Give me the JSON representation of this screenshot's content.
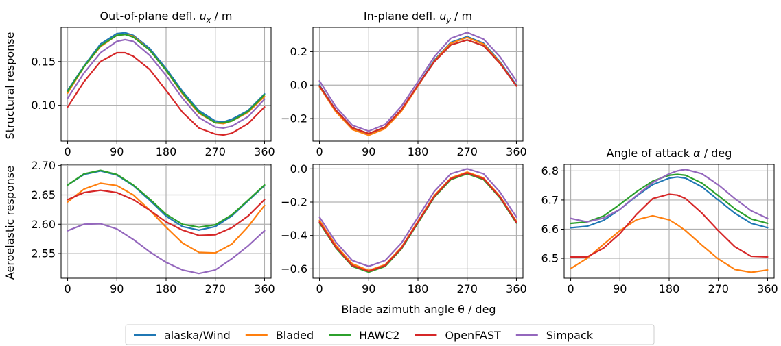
{
  "figure": {
    "row_labels": [
      "Structural response",
      "Aeroelastic response"
    ],
    "xlabel_common": "Blade azimuth angle θ / deg",
    "legend": [
      {
        "name": "alaska/Wind",
        "color": "#1f77b4"
      },
      {
        "name": "Bladed",
        "color": "#ff7f0e"
      },
      {
        "name": "HAWC2",
        "color": "#2ca02c"
      },
      {
        "name": "OpenFAST",
        "color": "#d62728"
      },
      {
        "name": "Simpack",
        "color": "#9467bd"
      }
    ]
  },
  "chart_data": [
    {
      "id": "ux",
      "type": "line",
      "title": "Out-of-plane defl. u_x / m",
      "title_parts": [
        "Out-of-plane defl. ",
        "u",
        "x",
        " / m"
      ],
      "xlabel": "",
      "ylabel": "Structural response",
      "xlim": [
        -12,
        372
      ],
      "ylim": [
        0.059,
        0.189
      ],
      "xticks": [
        0,
        90,
        180,
        270,
        360
      ],
      "yticks": [
        0.1,
        0.15
      ],
      "ytick_labels": [
        "0.10",
        "0.15"
      ],
      "grid": true,
      "x": [
        0,
        30,
        60,
        90,
        105,
        120,
        150,
        180,
        210,
        240,
        270,
        285,
        300,
        330,
        360
      ],
      "series": [
        {
          "name": "alaska/Wind",
          "color": "#1f77b4",
          "values": [
            0.117,
            0.145,
            0.17,
            0.182,
            0.183,
            0.18,
            0.165,
            0.142,
            0.116,
            0.094,
            0.082,
            0.081,
            0.084,
            0.094,
            0.113
          ]
        },
        {
          "name": "Bladed",
          "color": "#ff7f0e",
          "values": [
            0.114,
            0.144,
            0.167,
            0.18,
            0.181,
            0.179,
            0.163,
            0.14,
            0.113,
            0.091,
            0.08,
            0.079,
            0.082,
            0.092,
            0.11
          ]
        },
        {
          "name": "HAWC2",
          "color": "#2ca02c",
          "values": [
            0.116,
            0.144,
            0.168,
            0.18,
            0.181,
            0.178,
            0.163,
            0.14,
            0.114,
            0.092,
            0.08,
            0.08,
            0.082,
            0.093,
            0.112
          ]
        },
        {
          "name": "OpenFAST",
          "color": "#d62728",
          "values": [
            0.098,
            0.127,
            0.15,
            0.16,
            0.16,
            0.156,
            0.141,
            0.117,
            0.092,
            0.074,
            0.067,
            0.066,
            0.068,
            0.079,
            0.098
          ]
        },
        {
          "name": "Simpack",
          "color": "#9467bd",
          "values": [
            0.108,
            0.137,
            0.16,
            0.173,
            0.175,
            0.173,
            0.157,
            0.134,
            0.108,
            0.086,
            0.075,
            0.074,
            0.076,
            0.087,
            0.107
          ]
        }
      ]
    },
    {
      "id": "uy",
      "type": "line",
      "title": "In-plane defl. u_y / m",
      "title_parts": [
        "In-plane defl. ",
        "u",
        "y",
        " / m"
      ],
      "xlabel": "",
      "ylabel": "",
      "xlim": [
        -12,
        372
      ],
      "ylim": [
        -0.335,
        0.345
      ],
      "xticks": [
        0,
        90,
        180,
        270,
        360
      ],
      "yticks": [
        -0.2,
        0.0,
        0.2
      ],
      "ytick_labels": [
        "−0.2",
        "0.0",
        "0.2"
      ],
      "grid": true,
      "x": [
        0,
        30,
        60,
        90,
        120,
        150,
        180,
        210,
        240,
        270,
        300,
        330,
        360
      ],
      "series": [
        {
          "name": "alaska/Wind",
          "color": "#1f77b4",
          "values": [
            0.0,
            -0.15,
            -0.26,
            -0.295,
            -0.255,
            -0.15,
            0.0,
            0.15,
            0.255,
            0.29,
            0.25,
            0.14,
            0.0
          ]
        },
        {
          "name": "Bladed",
          "color": "#ff7f0e",
          "values": [
            -0.01,
            -0.16,
            -0.265,
            -0.3,
            -0.26,
            -0.155,
            -0.005,
            0.145,
            0.25,
            0.285,
            0.245,
            0.135,
            -0.005
          ]
        },
        {
          "name": "HAWC2",
          "color": "#2ca02c",
          "values": [
            -0.005,
            -0.15,
            -0.255,
            -0.29,
            -0.25,
            -0.145,
            0.0,
            0.14,
            0.24,
            0.27,
            0.235,
            0.13,
            -0.005
          ]
        },
        {
          "name": "OpenFAST",
          "color": "#d62728",
          "values": [
            -0.005,
            -0.15,
            -0.255,
            -0.29,
            -0.25,
            -0.145,
            0.0,
            0.14,
            0.24,
            0.27,
            0.235,
            0.13,
            -0.005
          ]
        },
        {
          "name": "Simpack",
          "color": "#9467bd",
          "values": [
            0.025,
            -0.13,
            -0.24,
            -0.275,
            -0.235,
            -0.125,
            0.02,
            0.17,
            0.28,
            0.315,
            0.275,
            0.17,
            0.025
          ]
        }
      ]
    },
    {
      "id": "aero-ux",
      "type": "line",
      "title": "",
      "xlabel": "",
      "ylabel": "Aeroelastic response",
      "xlim": [
        -12,
        372
      ],
      "ylim": [
        2.508,
        2.702
      ],
      "xticks": [
        0,
        90,
        180,
        270,
        360
      ],
      "yticks": [
        2.55,
        2.6,
        2.65,
        2.7
      ],
      "ytick_labels": [
        "2.55",
        "2.60",
        "2.65",
        "2.70"
      ],
      "grid": true,
      "x": [
        0,
        30,
        60,
        90,
        120,
        150,
        180,
        210,
        240,
        270,
        300,
        330,
        360
      ],
      "series": [
        {
          "name": "alaska/Wind",
          "color": "#1f77b4",
          "values": [
            2.667,
            2.685,
            2.691,
            2.684,
            2.666,
            2.641,
            2.614,
            2.596,
            2.59,
            2.596,
            2.614,
            2.64,
            2.666
          ]
        },
        {
          "name": "Bladed",
          "color": "#ff7f0e",
          "values": [
            2.638,
            2.66,
            2.67,
            2.666,
            2.65,
            2.624,
            2.595,
            2.568,
            2.552,
            2.551,
            2.566,
            2.596,
            2.632
          ]
        },
        {
          "name": "HAWC2",
          "color": "#2ca02c",
          "values": [
            2.667,
            2.686,
            2.692,
            2.685,
            2.667,
            2.643,
            2.617,
            2.6,
            2.595,
            2.599,
            2.616,
            2.641,
            2.667
          ]
        },
        {
          "name": "OpenFAST",
          "color": "#d62728",
          "values": [
            2.642,
            2.654,
            2.658,
            2.654,
            2.642,
            2.624,
            2.604,
            2.59,
            2.581,
            2.582,
            2.594,
            2.614,
            2.642
          ]
        },
        {
          "name": "Simpack",
          "color": "#9467bd",
          "values": [
            2.589,
            2.6,
            2.601,
            2.592,
            2.574,
            2.553,
            2.535,
            2.522,
            2.516,
            2.522,
            2.541,
            2.563,
            2.589
          ]
        }
      ]
    },
    {
      "id": "aero-uy",
      "type": "line",
      "title": "",
      "xlabel": "Blade azimuth angle θ / deg",
      "ylabel": "",
      "xlim": [
        -12,
        372
      ],
      "ylim": [
        -0.656,
        0.026
      ],
      "xticks": [
        0,
        90,
        180,
        270,
        360
      ],
      "yticks": [
        -0.6,
        -0.4,
        -0.2,
        0.0
      ],
      "ytick_labels": [
        "−0.6",
        "−0.4",
        "−0.2",
        "0.0"
      ],
      "grid": true,
      "x": [
        0,
        30,
        60,
        90,
        120,
        150,
        180,
        210,
        240,
        270,
        300,
        330,
        360
      ],
      "series": [
        {
          "name": "alaska/Wind",
          "color": "#1f77b4",
          "values": [
            -0.32,
            -0.47,
            -0.58,
            -0.615,
            -0.58,
            -0.475,
            -0.32,
            -0.165,
            -0.06,
            -0.025,
            -0.06,
            -0.17,
            -0.32
          ]
        },
        {
          "name": "Bladed",
          "color": "#ff7f0e",
          "values": [
            -0.31,
            -0.46,
            -0.57,
            -0.61,
            -0.575,
            -0.47,
            -0.315,
            -0.16,
            -0.055,
            -0.02,
            -0.055,
            -0.165,
            -0.315
          ]
        },
        {
          "name": "HAWC2",
          "color": "#2ca02c",
          "values": [
            -0.325,
            -0.475,
            -0.585,
            -0.62,
            -0.585,
            -0.48,
            -0.325,
            -0.17,
            -0.065,
            -0.03,
            -0.065,
            -0.175,
            -0.325
          ]
        },
        {
          "name": "OpenFAST",
          "color": "#d62728",
          "values": [
            -0.32,
            -0.47,
            -0.58,
            -0.615,
            -0.58,
            -0.475,
            -0.32,
            -0.165,
            -0.06,
            -0.025,
            -0.06,
            -0.17,
            -0.32
          ]
        },
        {
          "name": "Simpack",
          "color": "#9467bd",
          "values": [
            -0.29,
            -0.44,
            -0.55,
            -0.585,
            -0.55,
            -0.445,
            -0.29,
            -0.135,
            -0.03,
            0.0,
            -0.03,
            -0.14,
            -0.29
          ]
        }
      ]
    },
    {
      "id": "aoa",
      "type": "line",
      "title": "Angle of attack α / deg",
      "title_parts": [
        "Angle of attack ",
        "α",
        "",
        " / deg"
      ],
      "xlabel": "",
      "ylabel": "",
      "xlim": [
        -12,
        372
      ],
      "ylim": [
        6.432,
        6.822
      ],
      "xticks": [
        0,
        90,
        180,
        270,
        360
      ],
      "yticks": [
        6.5,
        6.6,
        6.7,
        6.8
      ],
      "ytick_labels": [
        "6.5",
        "6.6",
        "6.7",
        "6.8"
      ],
      "grid": true,
      "x": [
        0,
        30,
        60,
        90,
        120,
        150,
        180,
        195,
        210,
        240,
        270,
        300,
        330,
        360
      ],
      "series": [
        {
          "name": "alaska/Wind",
          "color": "#1f77b4",
          "values": [
            6.605,
            6.61,
            6.63,
            6.668,
            6.713,
            6.753,
            6.775,
            6.779,
            6.775,
            6.745,
            6.7,
            6.655,
            6.62,
            6.605
          ]
        },
        {
          "name": "Bladed",
          "color": "#ff7f0e",
          "values": [
            6.465,
            6.5,
            6.548,
            6.595,
            6.632,
            6.646,
            6.632,
            6.615,
            6.595,
            6.545,
            6.498,
            6.462,
            6.452,
            6.46
          ]
        },
        {
          "name": "HAWC2",
          "color": "#2ca02c",
          "values": [
            6.62,
            6.625,
            6.645,
            6.685,
            6.728,
            6.765,
            6.785,
            6.788,
            6.785,
            6.758,
            6.715,
            6.67,
            6.635,
            6.62
          ]
        },
        {
          "name": "OpenFAST",
          "color": "#d62728",
          "values": [
            6.505,
            6.505,
            6.535,
            6.585,
            6.65,
            6.705,
            6.72,
            6.717,
            6.705,
            6.655,
            6.595,
            6.54,
            6.507,
            6.505
          ]
        },
        {
          "name": "Simpack",
          "color": "#9467bd",
          "values": [
            6.637,
            6.625,
            6.638,
            6.668,
            6.715,
            6.76,
            6.79,
            6.8,
            6.805,
            6.79,
            6.752,
            6.705,
            6.663,
            6.637
          ]
        }
      ]
    }
  ]
}
